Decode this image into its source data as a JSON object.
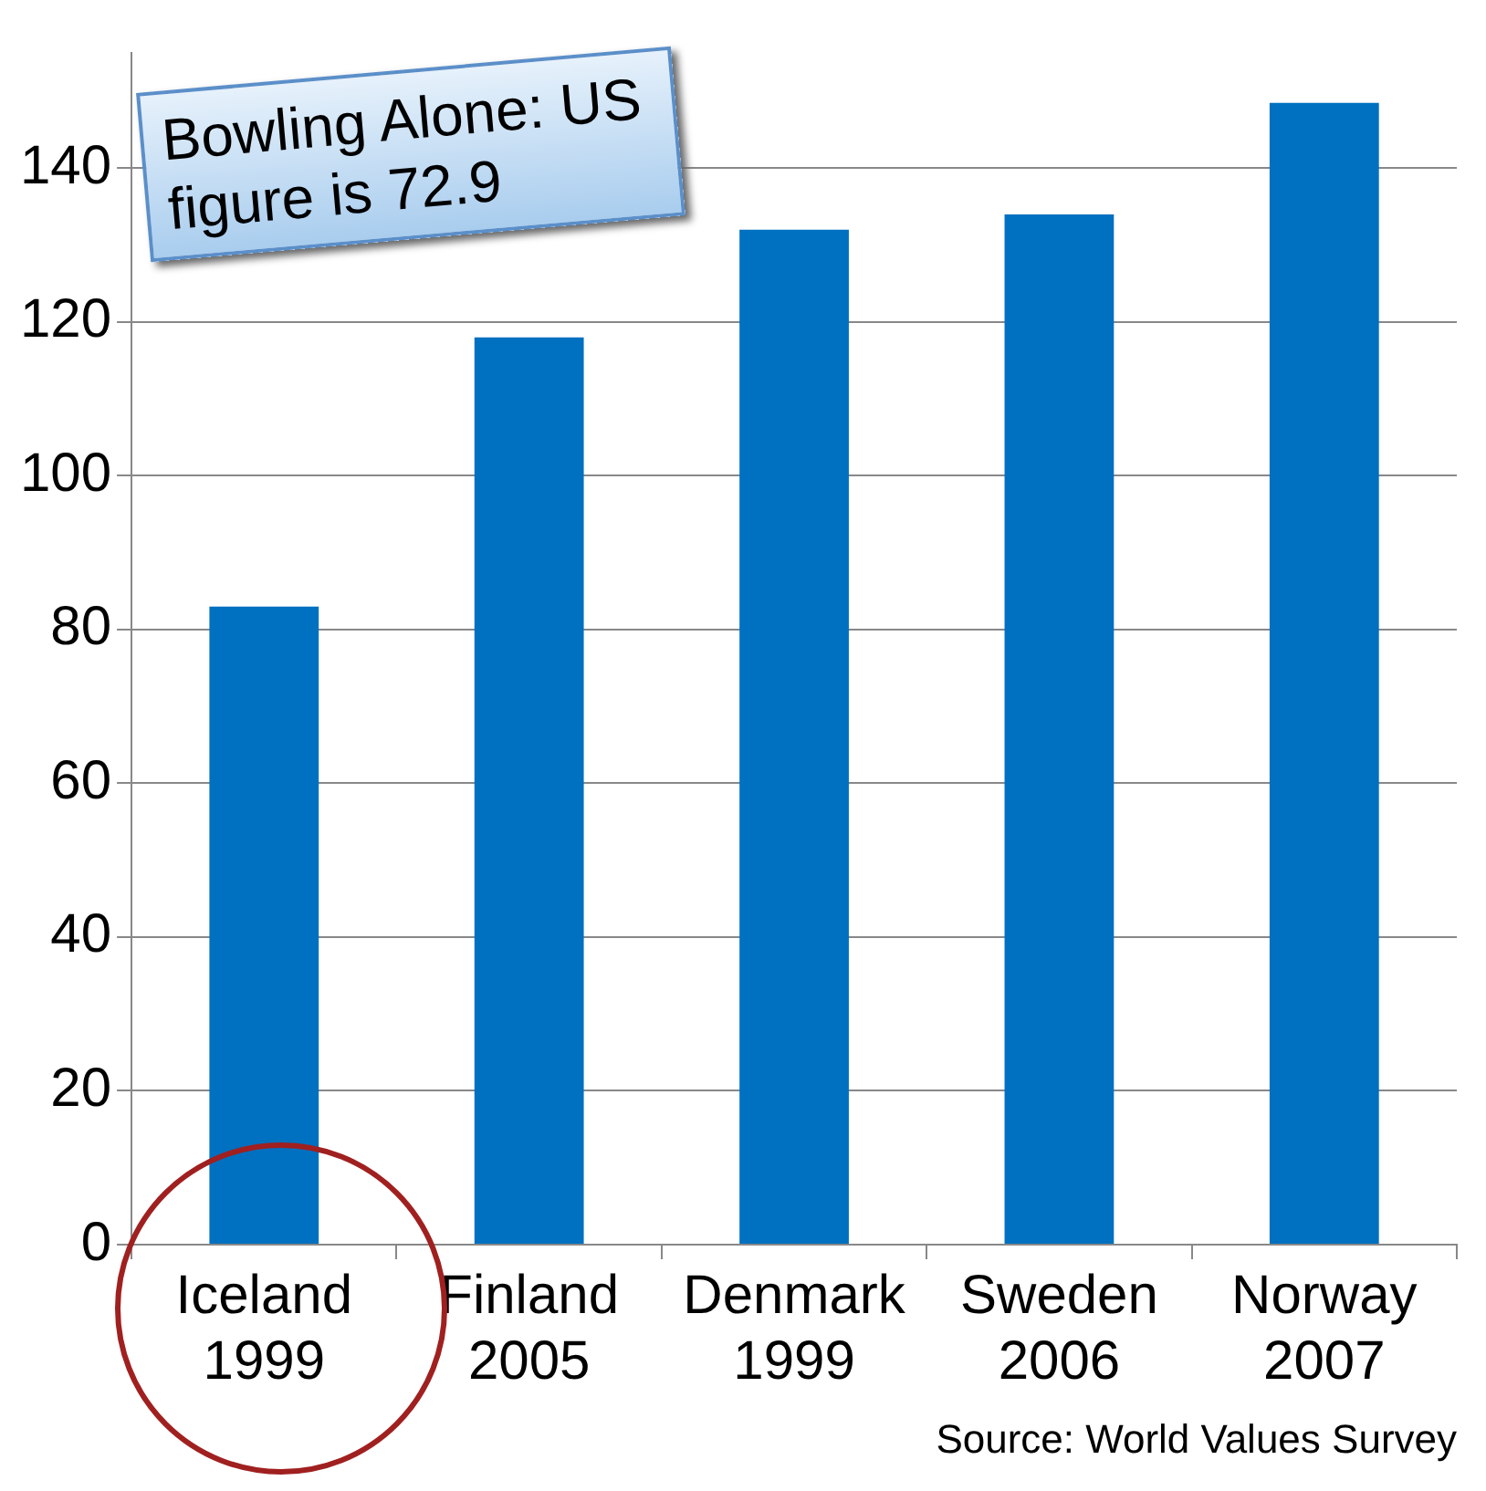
{
  "chart_data": {
    "type": "bar",
    "categories": [
      "Iceland\n1999",
      "Finland\n2005",
      "Denmark\n1999",
      "Sweden\n2006",
      "Norway\n2007"
    ],
    "values": [
      83,
      118,
      132,
      134,
      148.5
    ],
    "color": "#0070c0",
    "ylim": [
      0,
      155
    ],
    "yticks": [
      0,
      20,
      40,
      60,
      80,
      100,
      120,
      140
    ],
    "grid": "y",
    "legend": false,
    "annotations": [
      "Bowling Alone: US figure is 72.9",
      "Source: World Values Survey"
    ]
  }
}
